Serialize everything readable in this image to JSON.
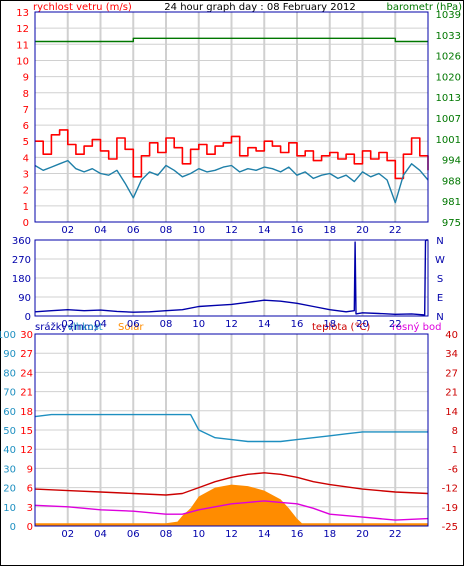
{
  "header": {
    "title": "24 hour graph day : 08 February 2012",
    "wind_label": "rychlost vetru (m/s)",
    "pressure_label": "barometr (hPa)"
  },
  "colors": {
    "frame": "#0000aa",
    "grid": "#d0d0d0",
    "wind_gust": "#ff0000",
    "wind_avg": "#1e7fa8",
    "pressure": "#007700",
    "direction": "#0000aa",
    "humidity": "#1e8fc0",
    "solar": "#ff8c00",
    "temperature": "#cc0000",
    "dewpoint": "#dd00dd",
    "rain_axis": "#0000aa"
  },
  "chart_data": [
    {
      "type": "line",
      "panel": "wind-and-pressure",
      "title": "24 hour graph day : 08 February 2012",
      "x_ticks": [
        "02",
        "04",
        "06",
        "08",
        "10",
        "12",
        "14",
        "16",
        "18",
        "20",
        "22"
      ],
      "xlim": [
        0,
        24
      ],
      "grid": true,
      "left_axis": {
        "label": "rychlost vetru (m/s)",
        "ticks": [
          0,
          1,
          2,
          3,
          4,
          5,
          6,
          7,
          8,
          9,
          10,
          11,
          12,
          13
        ],
        "ylim": [
          0,
          13
        ]
      },
      "right_axis": {
        "label": "barometr (hPa)",
        "ticks": [
          975,
          981,
          988,
          994,
          1001,
          1007,
          1013,
          1020,
          1026,
          1033,
          1039
        ],
        "ylim": [
          975,
          1039
        ]
      },
      "series": [
        {
          "kind": "gust",
          "x": [
            0,
            0.5,
            1,
            1.5,
            2,
            2.5,
            3,
            3.5,
            4,
            4.5,
            5,
            5.5,
            6,
            6.5,
            7,
            7.5,
            8,
            8.5,
            9,
            9.5,
            10,
            10.5,
            11,
            11.5,
            12,
            12.5,
            13,
            13.5,
            14,
            14.5,
            15,
            15.5,
            16,
            16.5,
            17,
            17.5,
            18,
            18.5,
            19,
            19.5,
            20,
            20.5,
            21,
            21.5,
            22,
            22.5,
            23,
            23.5,
            24
          ],
          "values": [
            5,
            4.2,
            5.4,
            5.7,
            4.8,
            4.2,
            4.7,
            5.1,
            4.4,
            3.9,
            5.2,
            4.5,
            2.8,
            4.1,
            4.9,
            4.3,
            5.2,
            4.6,
            3.6,
            4.5,
            4.8,
            4.2,
            4.7,
            4.9,
            5.3,
            4.1,
            4.6,
            4.4,
            5,
            4.7,
            4.3,
            4.9,
            4.1,
            4.4,
            3.8,
            4.1,
            4.3,
            3.9,
            4.2,
            3.6,
            4.4,
            3.9,
            4.3,
            3.8,
            2.7,
            4.2,
            5.2,
            4.1,
            3.2
          ]
        },
        {
          "kind": "average",
          "x": [
            0,
            0.5,
            1,
            1.5,
            2,
            2.5,
            3,
            3.5,
            4,
            4.5,
            5,
            5.5,
            6,
            6.5,
            7,
            7.5,
            8,
            8.5,
            9,
            9.5,
            10,
            10.5,
            11,
            11.5,
            12,
            12.5,
            13,
            13.5,
            14,
            14.5,
            15,
            15.5,
            16,
            16.5,
            17,
            17.5,
            18,
            18.5,
            19,
            19.5,
            20,
            20.5,
            21,
            21.5,
            22,
            22.5,
            23,
            23.5,
            24
          ],
          "values": [
            3.5,
            3.2,
            3.4,
            3.6,
            3.8,
            3.3,
            3.1,
            3.3,
            3,
            2.9,
            3.2,
            2.4,
            1.5,
            2.6,
            3.1,
            2.9,
            3.5,
            3.2,
            2.8,
            3,
            3.3,
            3.1,
            3.2,
            3.4,
            3.5,
            3.1,
            3.3,
            3.2,
            3.4,
            3.3,
            3.1,
            3.4,
            2.9,
            3.1,
            2.7,
            2.9,
            3,
            2.7,
            2.9,
            2.5,
            3.1,
            2.8,
            3,
            2.6,
            1.2,
            2.9,
            3.6,
            3.2,
            2.6
          ]
        },
        {
          "kind": "pressure",
          "x": [
            0,
            2,
            4,
            6,
            8,
            10,
            12,
            14,
            16,
            18,
            20,
            22,
            24
          ],
          "values": [
            1030,
            1030,
            1030,
            1031,
            1031,
            1031,
            1031,
            1031,
            1031,
            1031,
            1031,
            1030,
            1030
          ]
        }
      ]
    },
    {
      "type": "line",
      "panel": "wind-direction",
      "x_ticks": [
        "02",
        "04",
        "06",
        "08",
        "10",
        "12",
        "14",
        "16",
        "18",
        "20",
        "22"
      ],
      "xlim": [
        0,
        24
      ],
      "grid": true,
      "left_axis": {
        "ticks": [
          0,
          90,
          180,
          270,
          360
        ],
        "ylim": [
          0,
          360
        ]
      },
      "right_axis": {
        "ticks": [
          "N",
          "E",
          "S",
          "W",
          "N"
        ]
      },
      "series": [
        {
          "kind": "direction",
          "x": [
            0,
            1,
            2,
            3,
            4,
            5,
            6,
            7,
            8,
            9,
            10,
            11,
            12,
            13,
            14,
            15,
            16,
            17,
            18,
            19,
            19.5,
            19.55,
            19.6,
            20,
            21,
            22,
            23,
            23.8,
            23.85,
            23.9,
            24
          ],
          "values": [
            20,
            25,
            30,
            25,
            28,
            22,
            18,
            20,
            25,
            30,
            45,
            50,
            55,
            65,
            75,
            70,
            60,
            45,
            30,
            20,
            25,
            350,
            10,
            15,
            12,
            8,
            10,
            5,
            355,
            360,
            360
          ]
        }
      ]
    },
    {
      "type": "line",
      "panel": "rain-humidity-solar-temperature",
      "x_ticks": [
        "02",
        "04",
        "06",
        "08",
        "10",
        "12",
        "14",
        "16",
        "18",
        "20",
        "22"
      ],
      "xlim": [
        0,
        24
      ],
      "grid": true,
      "legend": [
        "srážky (mm)",
        "vlhkost",
        "Solar",
        "teplota (°C)",
        "rosný bod"
      ],
      "left_axes": {
        "rain_ticks": [
          0,
          3,
          6,
          9,
          12,
          15,
          18,
          21,
          24,
          27,
          30
        ],
        "humidity_ticks": [
          0,
          10,
          20,
          30,
          40,
          50,
          60,
          70,
          80,
          90,
          100
        ],
        "humidity_ylim": [
          0,
          100
        ]
      },
      "right_axis": {
        "ticks": [
          -25,
          -19,
          -12,
          -6,
          1,
          8,
          14,
          21,
          27,
          34,
          40
        ],
        "ylim": [
          -25,
          40
        ]
      },
      "series": [
        {
          "kind": "humidity",
          "x": [
            0,
            1,
            2,
            3,
            4,
            5,
            6,
            7,
            8,
            9,
            9.5,
            10,
            11,
            12,
            13,
            14,
            15,
            16,
            17,
            18,
            19,
            20,
            21,
            22,
            23,
            24
          ],
          "values": [
            57,
            58,
            58,
            58,
            58,
            58,
            58,
            58,
            58,
            58,
            58,
            50,
            46,
            45,
            44,
            44,
            44,
            45,
            46,
            47,
            48,
            49,
            49,
            49,
            49,
            49
          ]
        },
        {
          "kind": "temperature",
          "x": [
            0,
            2,
            4,
            6,
            8,
            9,
            10,
            11,
            12,
            13,
            14,
            15,
            16,
            17,
            18,
            20,
            22,
            24
          ],
          "values": [
            -12.5,
            -13,
            -13.5,
            -14,
            -14.5,
            -14,
            -12,
            -10,
            -8.5,
            -7.5,
            -7,
            -7.5,
            -8.5,
            -10,
            -11,
            -12.5,
            -13.5,
            -14
          ]
        },
        {
          "kind": "dewpoint",
          "x": [
            0,
            2,
            4,
            6,
            8,
            9,
            10,
            11,
            12,
            13,
            14,
            15,
            16,
            17,
            18,
            20,
            22,
            24
          ],
          "values": [
            -18,
            -18.5,
            -19.5,
            -20,
            -21,
            -21,
            -19.5,
            -18.5,
            -17.5,
            -17,
            -16.5,
            -17,
            -17.5,
            -19,
            -21,
            -22,
            -23,
            -22.5
          ]
        },
        {
          "kind": "solar",
          "x": [
            0,
            8,
            8.7,
            9,
            9.5,
            10,
            11,
            12,
            13,
            14,
            15,
            15.5,
            16,
            16.3,
            24
          ],
          "values": [
            0.9,
            0.9,
            1.5,
            3.5,
            6,
            10,
            13,
            14,
            13.5,
            12,
            9,
            6,
            2.5,
            0.9,
            0.9
          ]
        }
      ]
    }
  ]
}
